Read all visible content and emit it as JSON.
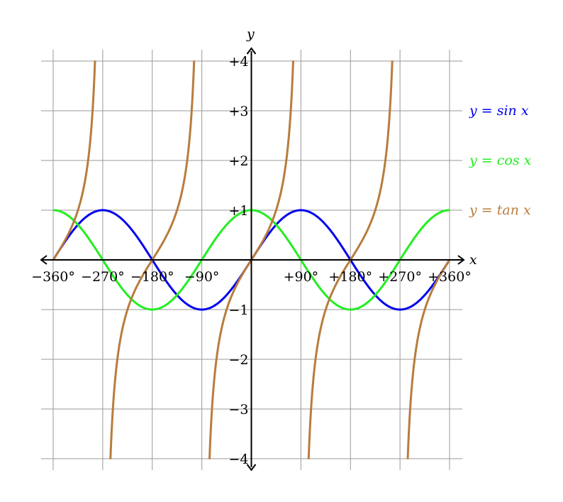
{
  "chart_data": {
    "type": "line",
    "xlabel": "x",
    "ylabel": "y",
    "xlim": [
      -360,
      360
    ],
    "ylim": [
      -4,
      4
    ],
    "grid": true,
    "legend_placement": "right",
    "x_ticks": [
      {
        "value": -360,
        "label": "−360°"
      },
      {
        "value": -270,
        "label": "−270°"
      },
      {
        "value": -180,
        "label": "−180°"
      },
      {
        "value": -90,
        "label": "−90°"
      },
      {
        "value": 90,
        "label": "+90°"
      },
      {
        "value": 180,
        "label": "+180°"
      },
      {
        "value": 270,
        "label": "+270°"
      },
      {
        "value": 360,
        "label": "+360°"
      }
    ],
    "y_ticks": [
      {
        "value": 4,
        "label": "+4"
      },
      {
        "value": 3,
        "label": "+3"
      },
      {
        "value": 2,
        "label": "+2"
      },
      {
        "value": 1,
        "label": "+1"
      },
      {
        "value": -1,
        "label": "−1"
      },
      {
        "value": -2,
        "label": "−2"
      },
      {
        "value": -3,
        "label": "−3"
      },
      {
        "value": -4,
        "label": "−4"
      }
    ],
    "series": [
      {
        "name": "y = sin x",
        "function": "sin",
        "domain": [
          -360,
          360
        ],
        "color": "#0000ee",
        "legend_value": 3
      },
      {
        "name": "y = cos x",
        "function": "cos",
        "domain": [
          -360,
          360
        ],
        "color": "#22ee22",
        "legend_value": 2
      },
      {
        "name": "y = tan x",
        "function": "tan",
        "domain": [
          -360,
          360
        ],
        "color": "#b87c3e",
        "legend_value": 1
      }
    ]
  }
}
